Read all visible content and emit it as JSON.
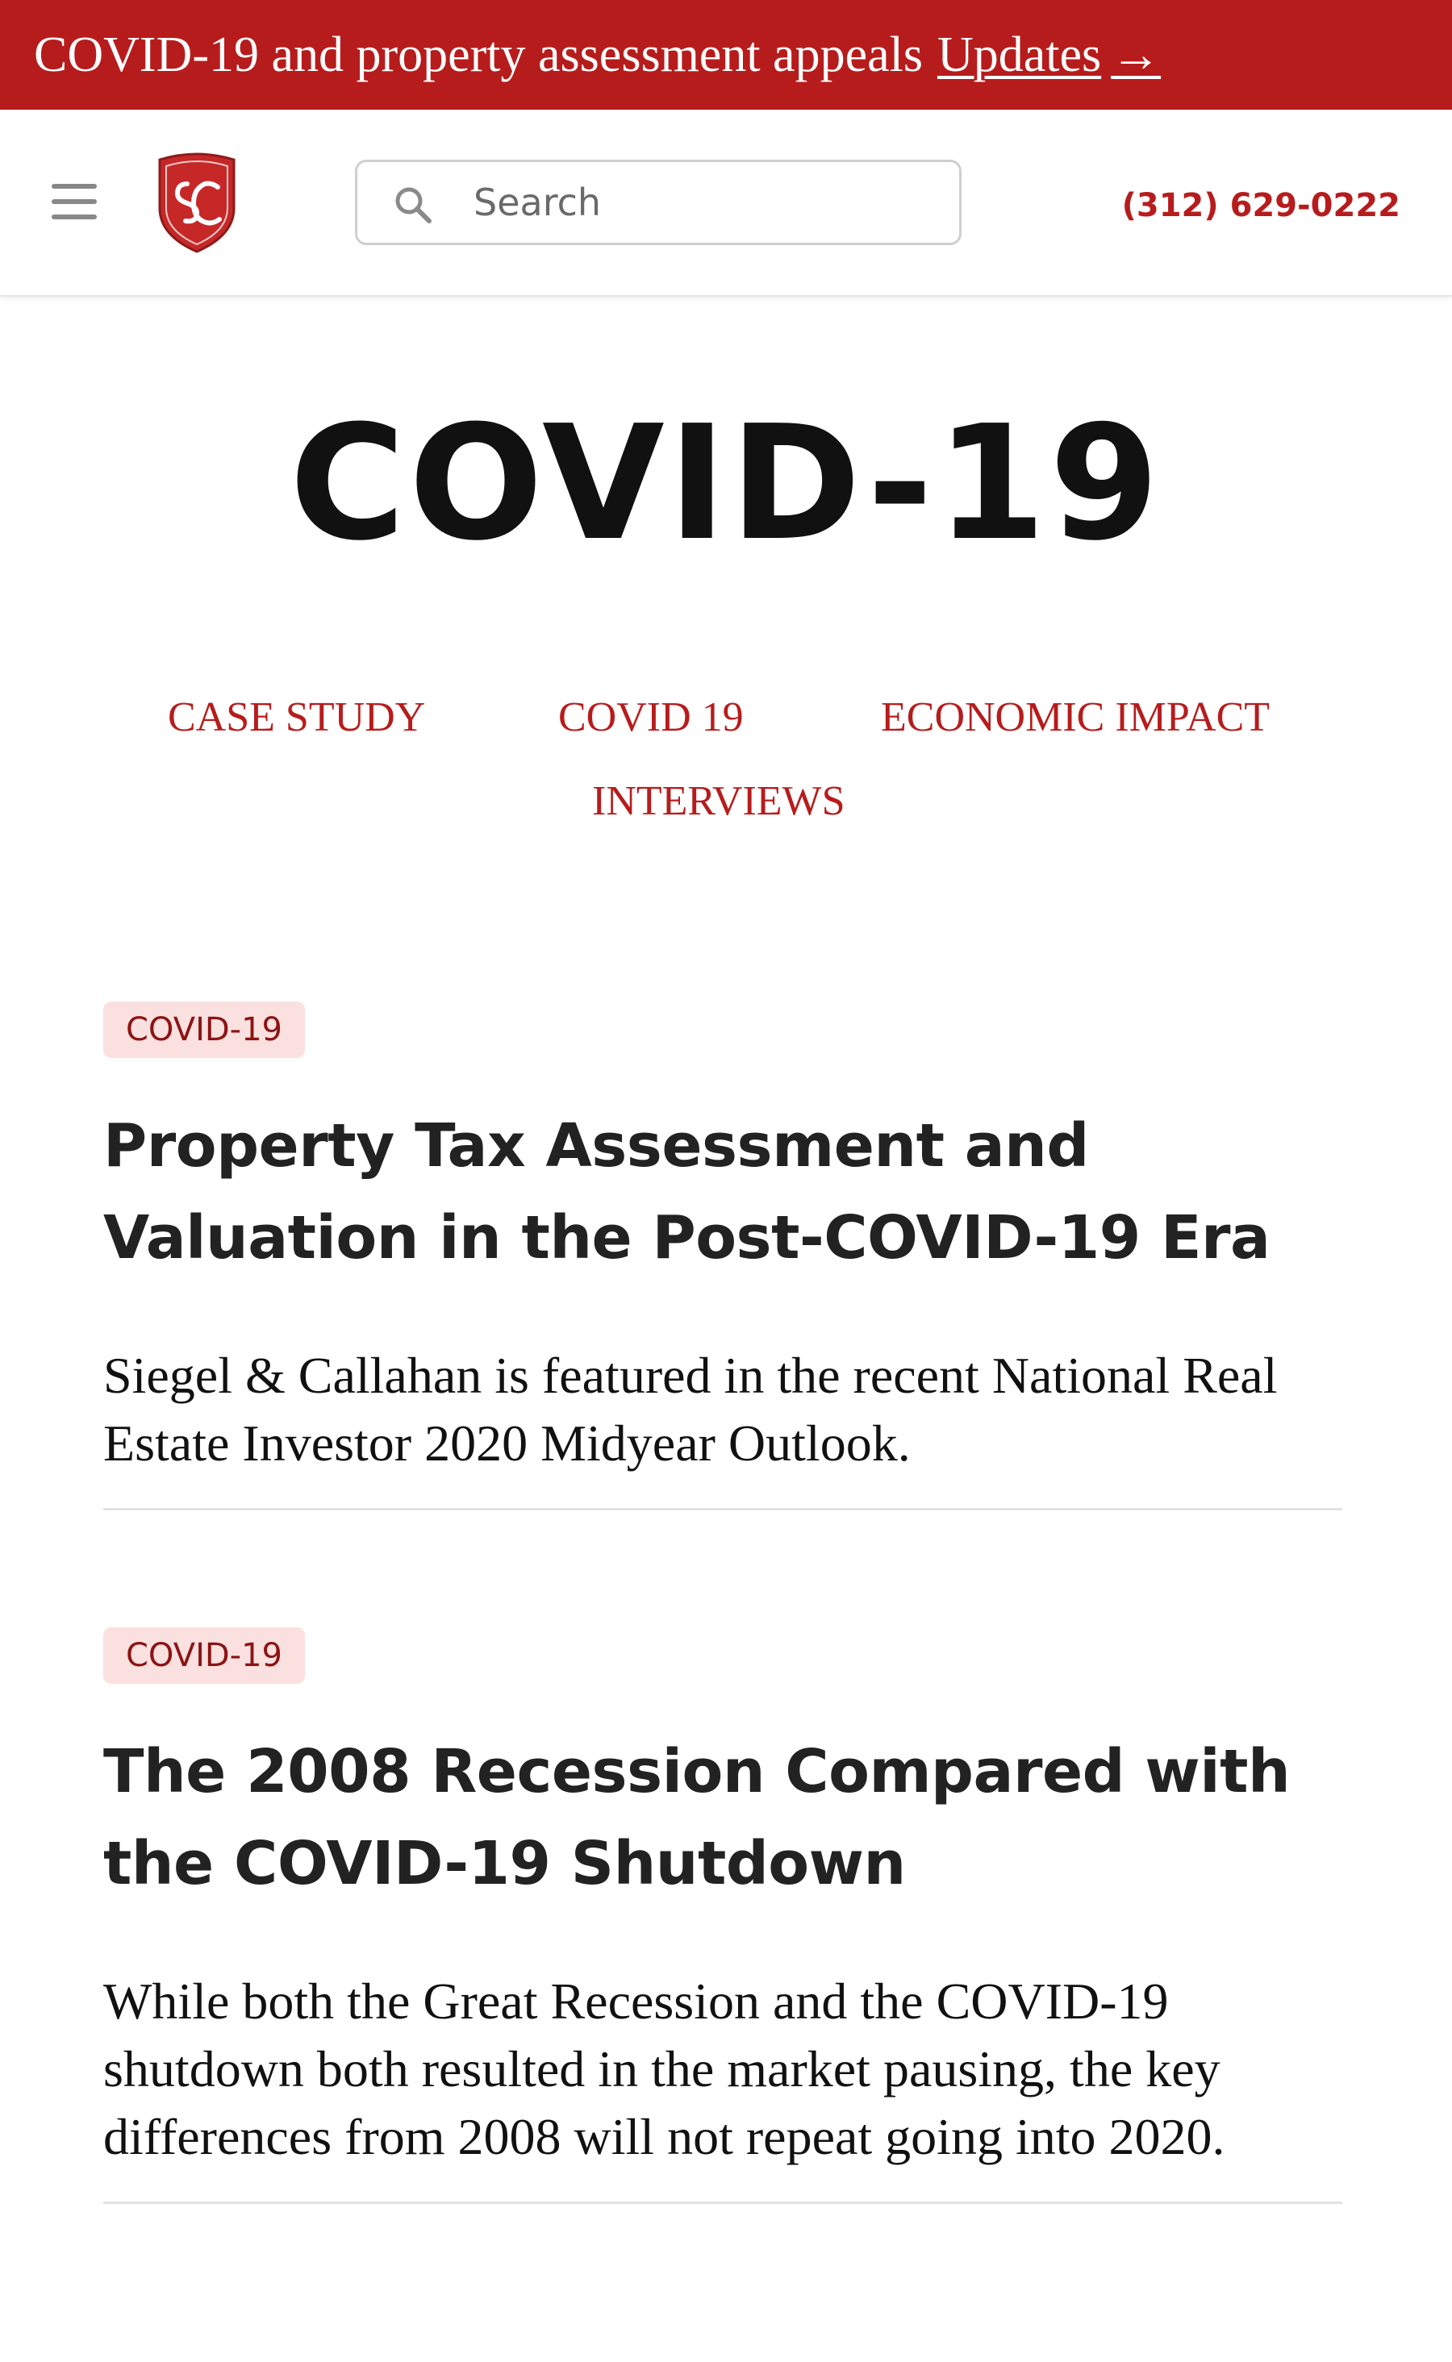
{
  "announcement": {
    "text": "COVID-19 and property assessment appeals",
    "link_label": "Updates",
    "arrow": "→"
  },
  "header": {
    "menu_icon": "hamburger-menu-icon",
    "logo_alt": "SC",
    "search": {
      "placeholder": "Search",
      "value": ""
    },
    "phone": "(312) 629-0222"
  },
  "page": {
    "title": "COVID-19"
  },
  "categories": [
    {
      "label": "CASE STUDY"
    },
    {
      "label": "COVID 19"
    },
    {
      "label": "ECONOMIC IMPACT"
    },
    {
      "label": "INTERVIEWS"
    }
  ],
  "articles": [
    {
      "badge": "COVID-19",
      "title": "Property Tax Assessment and Valuation in the Post-COVID-19 Era",
      "excerpt": "Siegel & Callahan is featured in the recent National Real Estate Investor 2020 Midyear Outlook."
    },
    {
      "badge": "COVID-19",
      "title": "The 2008 Recession Compared with the COVID-19 Shutdown",
      "excerpt": "While both the Great Recession and the COVID-19 shutdown both resulted in the market pausing, the key differences from 2008 will not repeat going into 2020."
    }
  ],
  "colors": {
    "brand_red": "#b71c1c",
    "badge_bg": "#fbe0e0"
  }
}
